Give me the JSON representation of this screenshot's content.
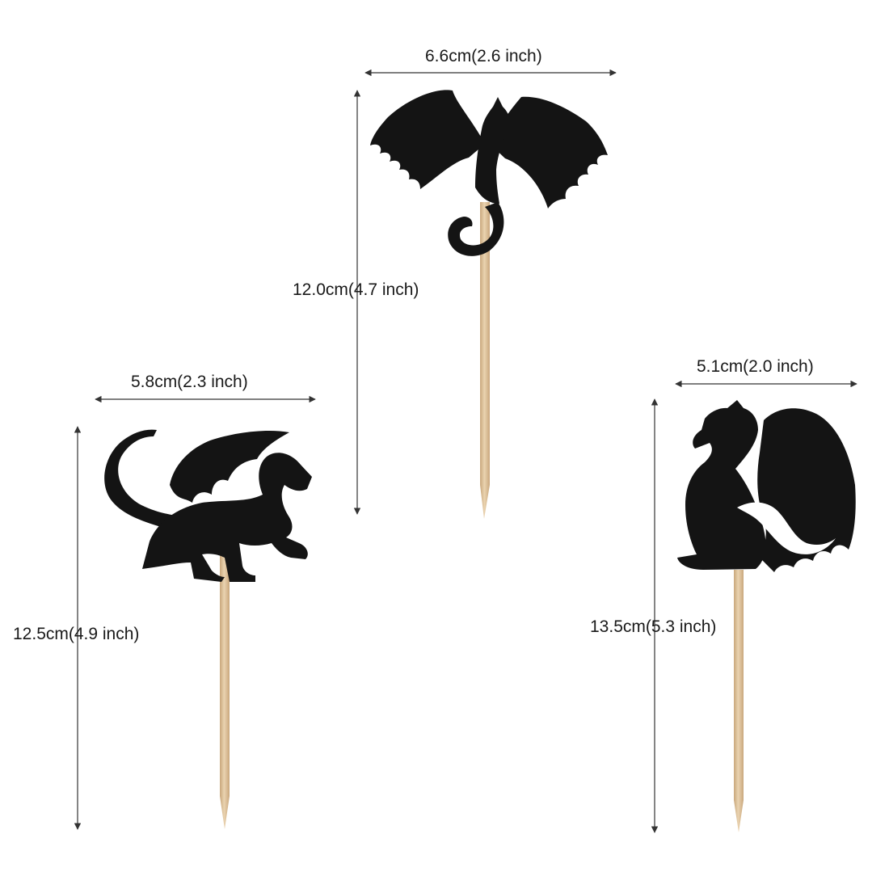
{
  "colors": {
    "background": "#ffffff",
    "silhouette": "#141414",
    "stick": "#e3c8a2",
    "stick_shade": "#c9a77c",
    "dimension_line": "#333333"
  },
  "toppers": [
    {
      "name": "flying-dragon",
      "width_label": "6.6cm(2.6 inch)",
      "height_label": "12.0cm(4.7 inch)"
    },
    {
      "name": "walking-dragon",
      "width_label": "5.8cm(2.3 inch)",
      "height_label": "12.5cm(4.9 inch)"
    },
    {
      "name": "sitting-dragon",
      "width_label": "5.1cm(2.0 inch)",
      "height_label": "13.5cm(5.3 inch)"
    }
  ]
}
